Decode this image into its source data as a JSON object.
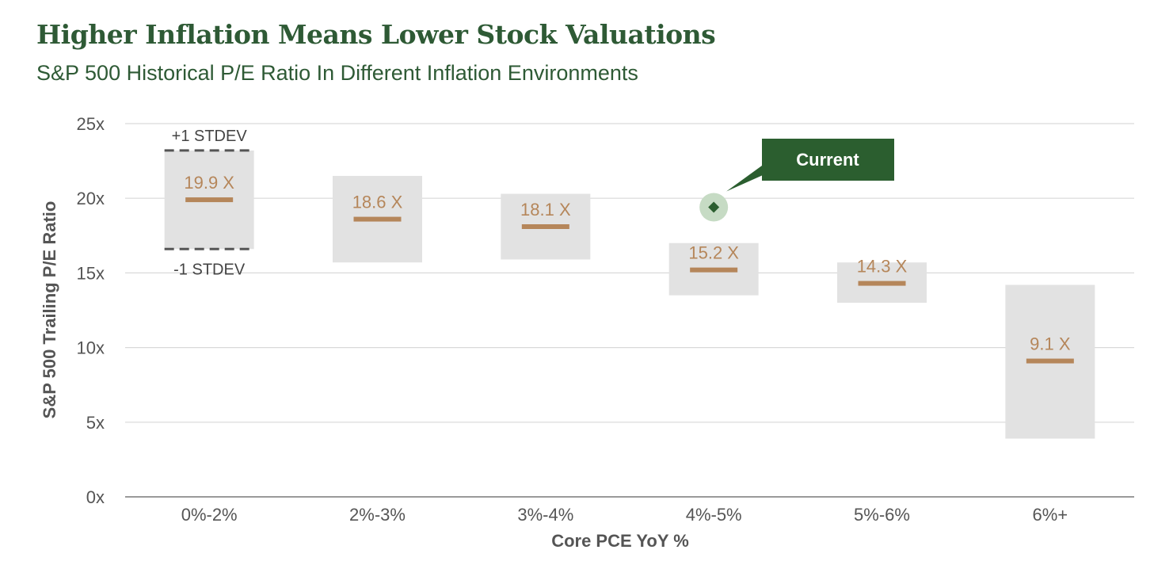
{
  "title": "Higher Inflation Means Lower Stock Valuations",
  "subtitle": "S&P 500 Historical P/E Ratio In Different Inflation Environments",
  "chart_data": {
    "type": "bar",
    "title": "Higher Inflation Means Lower Stock Valuations",
    "subtitle": "S&P 500 Historical P/E Ratio In Different Inflation Environments",
    "xlabel": "Core PCE YoY %",
    "ylabel": "S&P 500 Trailing P/E Ratio",
    "ylim": [
      0,
      25
    ],
    "yticks": [
      "0x",
      "5x",
      "10x",
      "15x",
      "20x",
      "25x"
    ],
    "grid": true,
    "categories": [
      "0%-2%",
      "2%-3%",
      "3%-4%",
      "4%-5%",
      "5%-6%",
      "6%+"
    ],
    "series": [
      {
        "name": "",
        "values": [
          19.9,
          18.6,
          18.1,
          15.2,
          14.3,
          9.1
        ]
      }
    ],
    "value_labels": [
      "19.9 X",
      "18.6 X",
      "18.1 X",
      "15.2 X",
      "14.3 X",
      "9.1 X"
    ],
    "ranges": [
      {
        "low": 16.6,
        "high": 23.2
      },
      {
        "low": 15.7,
        "high": 21.5
      },
      {
        "low": 15.9,
        "high": 20.3
      },
      {
        "low": 13.5,
        "high": 17.0
      },
      {
        "low": 13.0,
        "high": 15.7
      },
      {
        "low": 3.9,
        "high": 14.2
      }
    ],
    "std_labels": {
      "upper": "+1 STDEV",
      "lower": "-1 STDEV"
    },
    "current": {
      "category": "4%-5%",
      "value": 19.4,
      "label": "Current"
    },
    "colors": {
      "title": "#2e5a35",
      "range_box": "#e2e2e2",
      "median_line": "#b5865a",
      "callout": "#2b5e2f",
      "current_marker": "#2b5e2f",
      "gridline": "#d9d9d9"
    }
  }
}
